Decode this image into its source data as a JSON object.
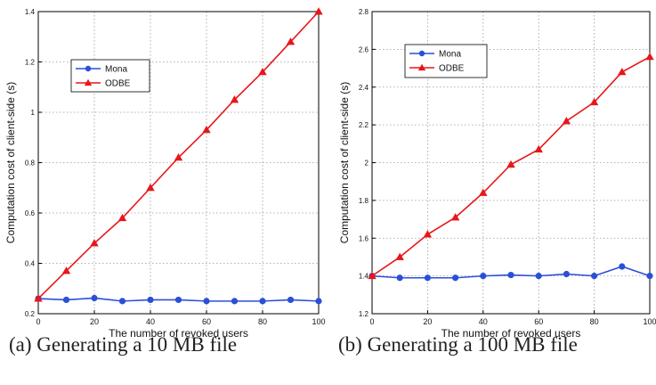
{
  "chart_data": [
    {
      "type": "line",
      "title": "",
      "xlabel": "The number of revoked users",
      "ylabel": "Computation cost of client-side (s)",
      "xlim": [
        0,
        100
      ],
      "ylim": [
        0.2,
        1.4
      ],
      "x_ticks": [
        "0",
        "20",
        "40",
        "60",
        "80",
        "100"
      ],
      "y_ticks": [
        "0.2",
        "0.4",
        "0.6",
        "0.8",
        "1",
        "1.2",
        "1.4"
      ],
      "grid": true,
      "legend_position": "top-left",
      "x": [
        0,
        10,
        20,
        30,
        40,
        50,
        60,
        70,
        80,
        90,
        100
      ],
      "series": [
        {
          "name": "Mona",
          "color": "#2b4fd8",
          "marker": "circle",
          "values": [
            0.26,
            0.255,
            0.262,
            0.25,
            0.255,
            0.255,
            0.25,
            0.25,
            0.25,
            0.255,
            0.25
          ]
        },
        {
          "name": "ODBE",
          "color": "#e8161a",
          "marker": "triangle",
          "values": [
            0.26,
            0.37,
            0.48,
            0.58,
            0.7,
            0.82,
            0.93,
            1.05,
            1.16,
            1.28,
            1.4
          ]
        }
      ],
      "caption": "(a) Generating a 10 MB file"
    },
    {
      "type": "line",
      "title": "",
      "xlabel": "The number of revoked users",
      "ylabel": "Computation cost of client-side (s)",
      "xlim": [
        0,
        100
      ],
      "ylim": [
        1.2,
        2.8
      ],
      "x_ticks": [
        "0",
        "20",
        "40",
        "60",
        "80",
        "100"
      ],
      "y_ticks": [
        "1.2",
        "1.4",
        "1.6",
        "1.8",
        "2",
        "2.2",
        "2.4",
        "2.6",
        "2.8"
      ],
      "grid": true,
      "legend_position": "top-left",
      "x": [
        0,
        10,
        20,
        30,
        40,
        50,
        60,
        70,
        80,
        90,
        100
      ],
      "series": [
        {
          "name": "Mona",
          "color": "#2b4fd8",
          "marker": "circle",
          "values": [
            1.4,
            1.39,
            1.39,
            1.39,
            1.4,
            1.405,
            1.4,
            1.41,
            1.4,
            1.45,
            1.4
          ]
        },
        {
          "name": "ODBE",
          "color": "#e8161a",
          "marker": "triangle",
          "values": [
            1.4,
            1.5,
            1.62,
            1.71,
            1.84,
            1.99,
            2.07,
            2.22,
            2.32,
            2.48,
            2.56
          ]
        }
      ],
      "caption": "(b) Generating a 100 MB file"
    }
  ]
}
